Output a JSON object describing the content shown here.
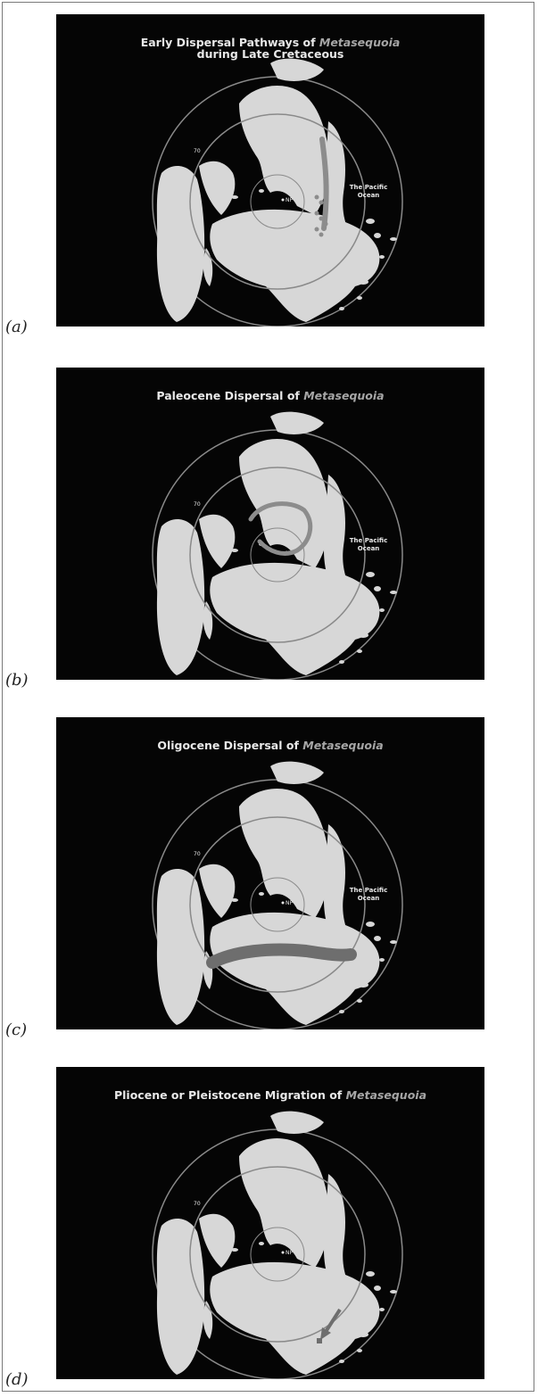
{
  "figure": {
    "panels": [
      {
        "letter": "(a)",
        "title_lines": [
          [
            {
              "text": "Early Dispersal Pathways of ",
              "style": "normal"
            },
            {
              "text": "Metasequoia",
              "style": "taxon"
            }
          ],
          [
            {
              "text": "during Late Cretaceous",
              "style": "normal"
            }
          ]
        ],
        "ocean_label": [
          "The Pacific",
          "Ocean"
        ],
        "pole_label": "NP",
        "circle_label": "70",
        "pathway": "cretaceous"
      },
      {
        "letter": "(b)",
        "title_lines": [
          [
            {
              "text": "Paleocene Dispersal of ",
              "style": "normal"
            },
            {
              "text": "Metasequoia",
              "style": "taxon"
            }
          ]
        ],
        "ocean_label": [
          "The Pacific",
          "Ocean"
        ],
        "pole_label": "NP",
        "circle_label": "70",
        "pathway": "paleocene"
      },
      {
        "letter": "(c)",
        "title_lines": [
          [
            {
              "text": "Oligocene Dispersal of ",
              "style": "normal"
            },
            {
              "text": "Metasequoia",
              "style": "taxon"
            }
          ]
        ],
        "ocean_label": [
          "The Pacific",
          "Ocean"
        ],
        "pole_label": "NP",
        "circle_label": "70",
        "pathway": "oligocene"
      },
      {
        "letter": "(d)",
        "title_lines": [
          [
            {
              "text": "Pliocene or Pleistocene Migration of ",
              "style": "normal"
            },
            {
              "text": "Metasequoia",
              "style": "taxon"
            }
          ]
        ],
        "ocean_label": [],
        "pole_label": "NP",
        "circle_label": "70",
        "pathway": "pliocene"
      }
    ],
    "colors": {
      "background": "#050505",
      "land": "#d7d7d7",
      "circle": "#8a8a8a",
      "text": "#e8e8e8",
      "taxon": "#a6a6a6",
      "pathway": "#8c8c8c",
      "pathway_dark": "#6e6e6e"
    }
  }
}
